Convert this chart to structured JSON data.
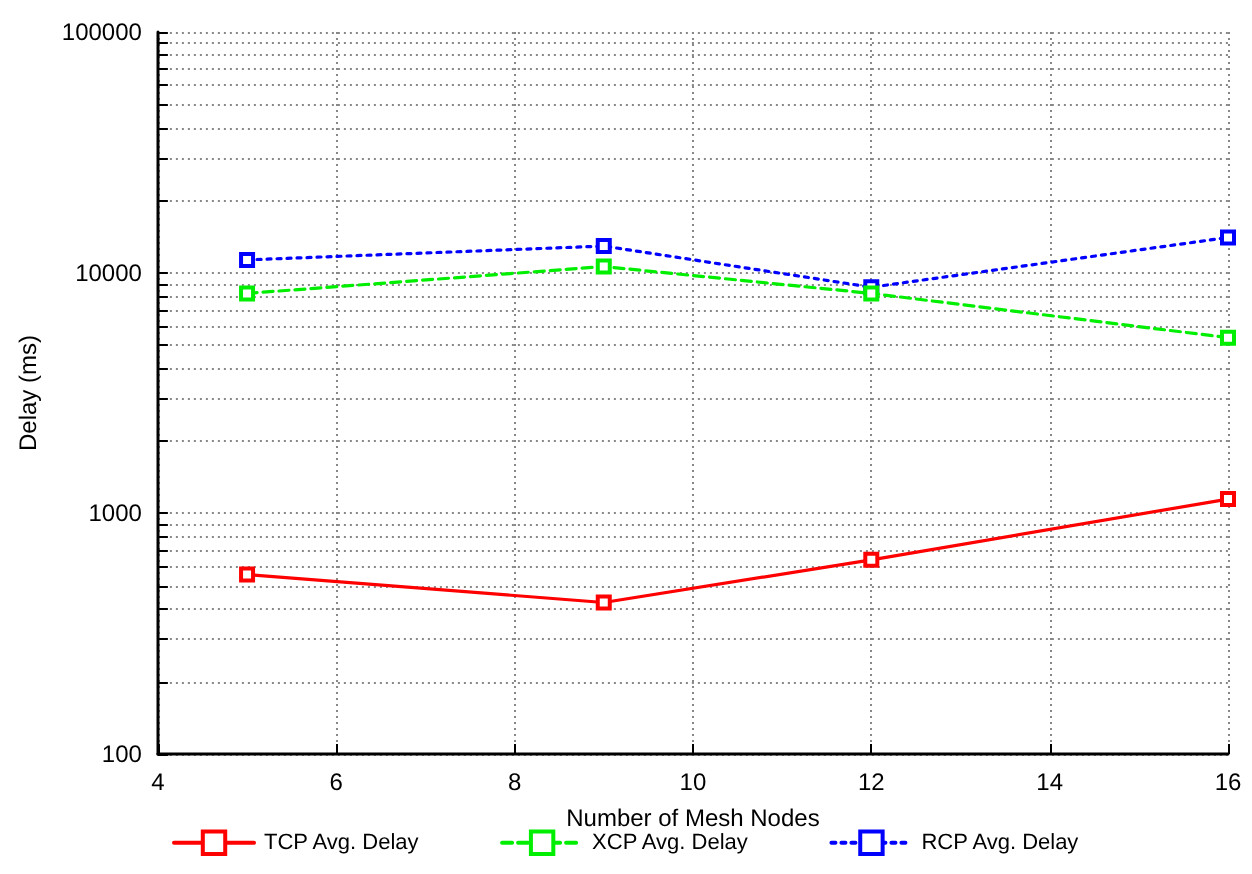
{
  "chart_data": {
    "type": "line",
    "xlabel": "Number of Mesh Nodes",
    "ylabel": "Delay (ms)",
    "x": [
      5,
      9,
      12,
      16
    ],
    "series": [
      {
        "name": "TCP Avg. Delay",
        "color": "#ff0000",
        "line_style": "solid",
        "values": [
          557,
          426,
          641,
          1146
        ]
      },
      {
        "name": "XCP Avg. Delay",
        "color": "#00ee00",
        "line_style": "dashed",
        "values": [
          8200,
          10600,
          8200,
          5370
        ]
      },
      {
        "name": "RCP Avg. Delay",
        "color": "#0000ff",
        "line_style": "dotted",
        "values": [
          11300,
          12900,
          8700,
          14000
        ]
      }
    ],
    "xlim": [
      4,
      16
    ],
    "xticks": [
      4,
      6,
      8,
      10,
      12,
      14,
      16
    ],
    "ylim": [
      100,
      100000
    ],
    "yticks": [
      100,
      {
        "value": 200,
        "label": null
      },
      {
        "value": 300,
        "label": null
      },
      {
        "value": 400,
        "label": null
      },
      {
        "value": 500,
        "label": null
      },
      {
        "value": 600,
        "label": null
      },
      {
        "value": 700,
        "label": null
      },
      {
        "value": 800,
        "label": null
      },
      {
        "value": 900,
        "label": null
      },
      1000,
      {
        "value": 2000,
        "label": null
      },
      {
        "value": 3000,
        "label": null
      },
      {
        "value": 4000,
        "label": null
      },
      {
        "value": 5000,
        "label": null
      },
      {
        "value": 6000,
        "label": null
      },
      {
        "value": 7000,
        "label": null
      },
      {
        "value": 8000,
        "label": null
      },
      {
        "value": 9000,
        "label": null
      },
      10000,
      {
        "value": 20000,
        "label": null
      },
      {
        "value": 30000,
        "label": null
      },
      {
        "value": 40000,
        "label": null
      },
      {
        "value": 50000,
        "label": null
      },
      {
        "value": 60000,
        "label": null
      },
      {
        "value": 70000,
        "label": null
      },
      {
        "value": 80000,
        "label": null
      },
      {
        "value": 90000,
        "label": null
      },
      100000
    ],
    "log": "y",
    "grid": true,
    "legend": "bottom",
    "marker": "square"
  }
}
